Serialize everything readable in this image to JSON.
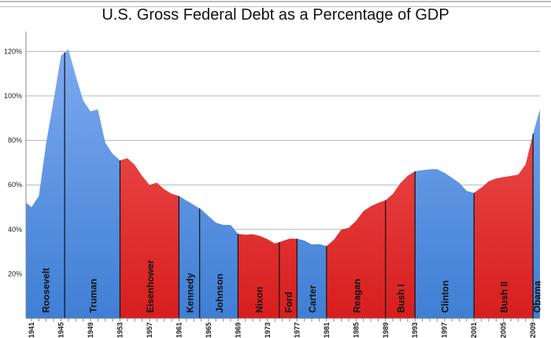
{
  "chart_data": {
    "type": "area",
    "title": "U.S. Gross Federal Debt as a Percentage of GDP",
    "xlabel": "",
    "ylabel": "",
    "ylim": [
      0,
      120
    ],
    "xlim": [
      1940,
      2010
    ],
    "grid": true,
    "y_ticks": [
      "20%",
      "40%",
      "60%",
      "80%",
      "100%",
      "120%"
    ],
    "x_ticks": [
      "1941",
      "1945",
      "1949",
      "1953",
      "1957",
      "1961",
      "1965",
      "1969",
      "1973",
      "1977",
      "1981",
      "1985",
      "1989",
      "1993",
      "1997",
      "2001",
      "2005",
      "2009"
    ],
    "years": [
      1940,
      1941,
      1942,
      1943,
      1944,
      1945,
      1946,
      1947,
      1948,
      1949,
      1950,
      1951,
      1952,
      1953,
      1954,
      1955,
      1956,
      1957,
      1958,
      1959,
      1960,
      1961,
      1962,
      1963,
      1964,
      1965,
      1966,
      1967,
      1968,
      1969,
      1970,
      1971,
      1972,
      1973,
      1974,
      1975,
      1976,
      1977,
      1978,
      1979,
      1980,
      1981,
      1982,
      1983,
      1984,
      1985,
      1986,
      1987,
      1988,
      1989,
      1990,
      1991,
      1992,
      1993,
      1994,
      1995,
      1996,
      1997,
      1998,
      1999,
      2000,
      2001,
      2002,
      2003,
      2004,
      2005,
      2006,
      2007,
      2008,
      2009,
      2010
    ],
    "values": [
      52,
      50,
      55,
      79,
      98,
      118,
      121,
      109,
      98,
      93,
      94,
      79,
      74,
      71,
      72,
      69,
      64,
      60,
      61,
      58,
      56,
      55,
      53,
      51,
      49,
      46,
      43,
      42,
      42,
      38,
      37.6,
      37.8,
      37,
      35.6,
      33.6,
      34.7,
      35.8,
      35.8,
      35,
      33.2,
      33.4,
      32.5,
      35.3,
      39.9,
      40.7,
      43.8,
      48.2,
      50.4,
      51.9,
      53.1,
      55.9,
      60.7,
      64.1,
      66.1,
      66.6,
      67,
      67.1,
      65.4,
      63.2,
      60.9,
      57.3,
      56.4,
      58.8,
      61.6,
      62.9,
      63.5,
      64,
      64.6,
      69.2,
      83,
      94
    ],
    "presidents": [
      {
        "name": "Roosevelt",
        "start": 1940,
        "end": 1945.5,
        "party": "D"
      },
      {
        "name": "Truman",
        "start": 1945.5,
        "end": 1953,
        "party": "D"
      },
      {
        "name": "Eisenhower",
        "start": 1953,
        "end": 1961,
        "party": "R"
      },
      {
        "name": "Kennedy",
        "start": 1961,
        "end": 1963.8,
        "party": "D"
      },
      {
        "name": "Johnson",
        "start": 1963.8,
        "end": 1969,
        "party": "D"
      },
      {
        "name": "Nixon",
        "start": 1969,
        "end": 1974.6,
        "party": "R"
      },
      {
        "name": "Ford",
        "start": 1974.6,
        "end": 1977,
        "party": "R"
      },
      {
        "name": "Carter",
        "start": 1977,
        "end": 1981,
        "party": "D"
      },
      {
        "name": "Reagan",
        "start": 1981,
        "end": 1989,
        "party": "R"
      },
      {
        "name": "Bush I",
        "start": 1989,
        "end": 1993,
        "party": "R"
      },
      {
        "name": "Clinton",
        "start": 1993,
        "end": 2001,
        "party": "D"
      },
      {
        "name": "Bush II",
        "start": 2001,
        "end": 2009,
        "party": "R"
      },
      {
        "name": "Obama",
        "start": 2009,
        "end": 2010,
        "party": "D"
      }
    ],
    "colors": {
      "D_top": "#7eaaf0",
      "D_bottom": "#3f7fd4",
      "R_top": "#f05a5a",
      "R_bottom": "#d81e1e",
      "grid": "#b5b5b5"
    }
  }
}
